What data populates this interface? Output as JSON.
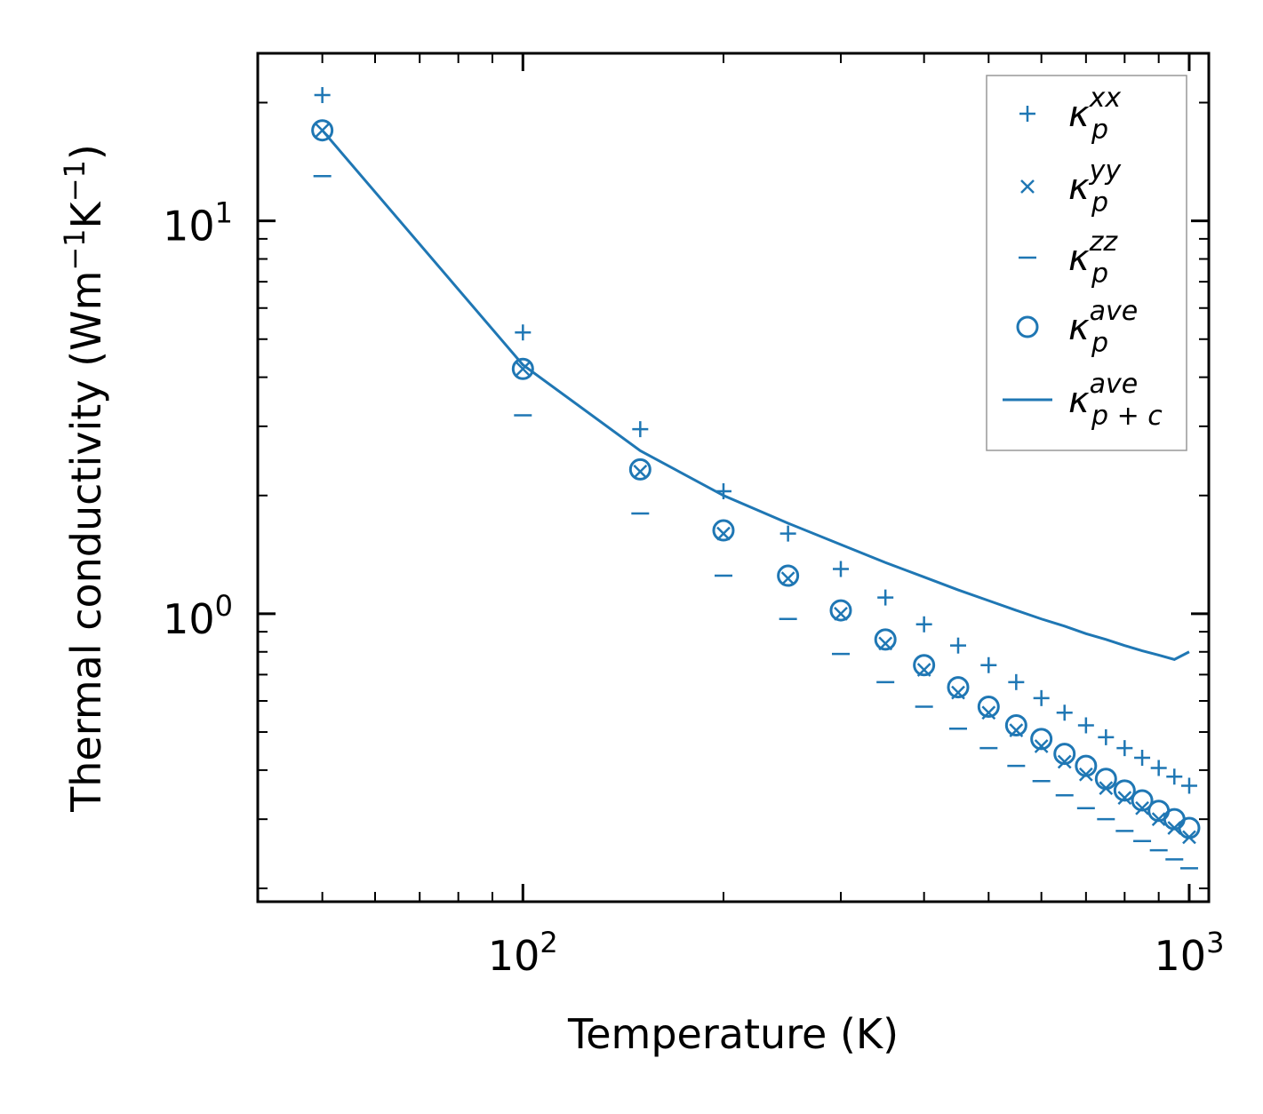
{
  "chart_data": {
    "type": "scatter",
    "title": "",
    "xlabel": "Temperature (K)",
    "ylabel_parts": [
      "Thermal conductivity (Wm",
      "−1",
      "K",
      "−1",
      ")"
    ],
    "xscale": "log",
    "yscale": "log",
    "xlim": [
      40,
      1070
    ],
    "ylim": [
      0.185,
      26.7
    ],
    "x_ticks": [
      {
        "base": "10",
        "exp": "2",
        "value": 100
      },
      {
        "base": "10",
        "exp": "3",
        "value": 1000
      }
    ],
    "y_ticks": [
      {
        "base": "10",
        "exp": "0",
        "value": 1
      },
      {
        "base": "10",
        "exp": "1",
        "value": 10
      }
    ],
    "legend_position": "top-right",
    "color": "#1f77b4",
    "x": [
      50,
      100,
      150,
      200,
      250,
      300,
      350,
      400,
      450,
      500,
      550,
      600,
      650,
      700,
      750,
      800,
      850,
      900,
      950,
      1000
    ],
    "series": [
      {
        "name": "κ_p^xx",
        "base": "κ",
        "sub": "p",
        "sup": "xx",
        "marker": "plus",
        "values": [
          20.9,
          5.2,
          2.95,
          2.05,
          1.6,
          1.3,
          1.1,
          0.94,
          0.83,
          0.74,
          0.67,
          0.61,
          0.56,
          0.52,
          0.485,
          0.455,
          0.43,
          0.405,
          0.385,
          0.365
        ]
      },
      {
        "name": "κ_p^yy",
        "base": "κ",
        "sub": "p",
        "sup": "yy",
        "marker": "x",
        "values": [
          17.0,
          4.2,
          2.3,
          1.6,
          1.23,
          1.0,
          0.84,
          0.72,
          0.63,
          0.56,
          0.505,
          0.46,
          0.42,
          0.39,
          0.36,
          0.34,
          0.32,
          0.3,
          0.285,
          0.27
        ]
      },
      {
        "name": "κ_p^zz",
        "base": "κ",
        "sub": "p",
        "sup": "zz",
        "marker": "hline",
        "values": [
          13.0,
          3.2,
          1.8,
          1.25,
          0.97,
          0.79,
          0.67,
          0.58,
          0.51,
          0.455,
          0.41,
          0.375,
          0.345,
          0.32,
          0.3,
          0.28,
          0.264,
          0.25,
          0.237,
          0.225
        ]
      },
      {
        "name": "κ_p^ave",
        "base": "κ",
        "sub": "p",
        "sup": "ave",
        "marker": "circle",
        "values": [
          17.0,
          4.2,
          2.33,
          1.63,
          1.25,
          1.02,
          0.86,
          0.74,
          0.65,
          0.58,
          0.52,
          0.48,
          0.44,
          0.41,
          0.38,
          0.355,
          0.335,
          0.315,
          0.3,
          0.285
        ]
      },
      {
        "name": "κ_p+c^ave",
        "base": "κ",
        "sub": "p + c",
        "sup": "ave",
        "marker": "line",
        "values": [
          17.0,
          4.3,
          2.6,
          2.0,
          1.7,
          1.5,
          1.35,
          1.24,
          1.15,
          1.08,
          1.02,
          0.97,
          0.93,
          0.89,
          0.86,
          0.83,
          0.805,
          0.785,
          0.765,
          0.8
        ]
      }
    ]
  }
}
